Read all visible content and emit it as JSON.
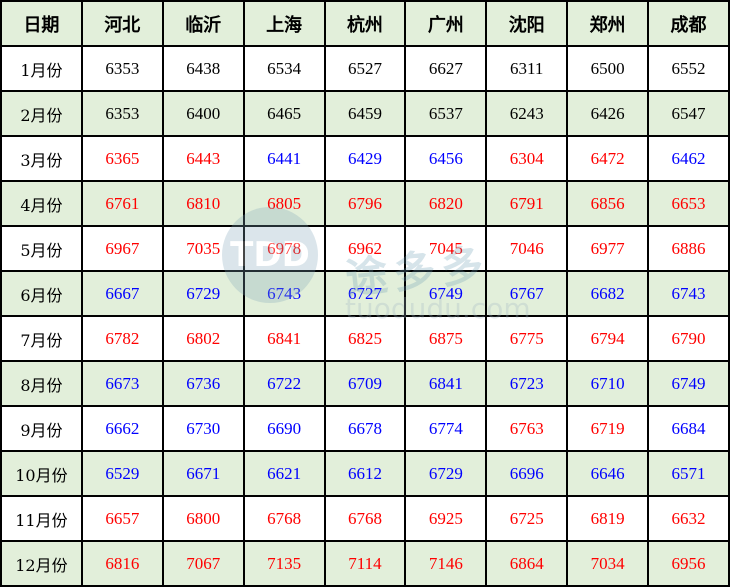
{
  "colors": {
    "up": "#ff0000",
    "down": "#0000ff",
    "base": "#000000",
    "header_bg": "#e2efda"
  },
  "headers": [
    "日期",
    "河北",
    "临沂",
    "上海",
    "杭州",
    "广州",
    "沈阳",
    "郑州",
    "成都"
  ],
  "rows": [
    {
      "month": "1月份",
      "values": [
        "6353",
        "6438",
        "6534",
        "6527",
        "6627",
        "6311",
        "6500",
        "6552"
      ],
      "trend": [
        "base",
        "base",
        "base",
        "base",
        "base",
        "base",
        "base",
        "base"
      ]
    },
    {
      "month": "2月份",
      "values": [
        "6353",
        "6400",
        "6465",
        "6459",
        "6537",
        "6243",
        "6426",
        "6547"
      ],
      "trend": [
        "base",
        "base",
        "base",
        "base",
        "base",
        "base",
        "base",
        "base"
      ]
    },
    {
      "month": "3月份",
      "values": [
        "6365",
        "6443",
        "6441",
        "6429",
        "6456",
        "6304",
        "6472",
        "6462"
      ],
      "trend": [
        "up",
        "up",
        "down",
        "down",
        "down",
        "up",
        "up",
        "down"
      ]
    },
    {
      "month": "4月份",
      "values": [
        "6761",
        "6810",
        "6805",
        "6796",
        "6820",
        "6791",
        "6856",
        "6653"
      ],
      "trend": [
        "up",
        "up",
        "up",
        "up",
        "up",
        "up",
        "up",
        "up"
      ]
    },
    {
      "month": "5月份",
      "values": [
        "6967",
        "7035",
        "6978",
        "6962",
        "7045",
        "7046",
        "6977",
        "6886"
      ],
      "trend": [
        "up",
        "up",
        "up",
        "up",
        "up",
        "up",
        "up",
        "up"
      ]
    },
    {
      "month": "6月份",
      "values": [
        "6667",
        "6729",
        "6743",
        "6727",
        "6749",
        "6767",
        "6682",
        "6743"
      ],
      "trend": [
        "down",
        "down",
        "down",
        "down",
        "down",
        "down",
        "down",
        "down"
      ]
    },
    {
      "month": "7月份",
      "values": [
        "6782",
        "6802",
        "6841",
        "6825",
        "6875",
        "6775",
        "6794",
        "6790"
      ],
      "trend": [
        "up",
        "up",
        "up",
        "up",
        "up",
        "up",
        "up",
        "up"
      ]
    },
    {
      "month": "8月份",
      "values": [
        "6673",
        "6736",
        "6722",
        "6709",
        "6841",
        "6723",
        "6710",
        "6749"
      ],
      "trend": [
        "down",
        "down",
        "down",
        "down",
        "down",
        "down",
        "down",
        "down"
      ]
    },
    {
      "month": "9月份",
      "values": [
        "6662",
        "6730",
        "6690",
        "6678",
        "6774",
        "6763",
        "6719",
        "6684"
      ],
      "trend": [
        "down",
        "down",
        "down",
        "down",
        "down",
        "up",
        "up",
        "down"
      ]
    },
    {
      "month": "10月份",
      "values": [
        "6529",
        "6671",
        "6621",
        "6612",
        "6729",
        "6696",
        "6646",
        "6571"
      ],
      "trend": [
        "down",
        "down",
        "down",
        "down",
        "down",
        "down",
        "down",
        "down"
      ]
    },
    {
      "month": "11月份",
      "values": [
        "6657",
        "6800",
        "6768",
        "6768",
        "6925",
        "6725",
        "6819",
        "6632"
      ],
      "trend": [
        "up",
        "up",
        "up",
        "up",
        "up",
        "up",
        "up",
        "up"
      ]
    },
    {
      "month": "12月份",
      "values": [
        "6816",
        "7067",
        "7135",
        "7114",
        "7146",
        "6864",
        "7034",
        "6956"
      ],
      "trend": [
        "up",
        "up",
        "up",
        "up",
        "up",
        "up",
        "up",
        "up"
      ]
    }
  ],
  "watermark": {
    "logo": "TDD",
    "name": "途多多",
    "url": "tuodudu.com"
  }
}
